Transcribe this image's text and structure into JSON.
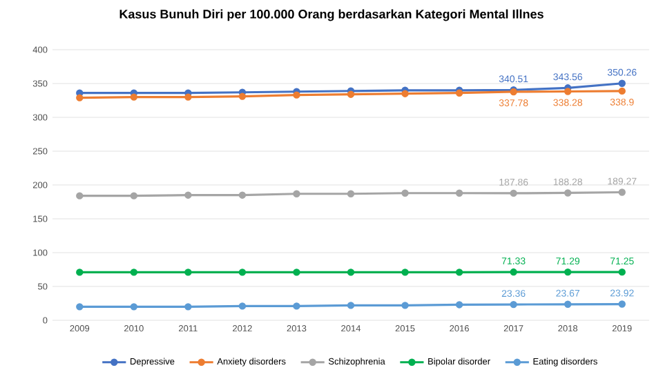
{
  "chart_data": {
    "type": "line",
    "title": "Kasus Bunuh Diri per 100.000 Orang berdasarkan Kategori Mental Illnes",
    "categories": [
      "2009",
      "2010",
      "2011",
      "2012",
      "2013",
      "2014",
      "2015",
      "2016",
      "2017",
      "2018",
      "2019"
    ],
    "ylim": [
      0,
      400
    ],
    "yticks": [
      0,
      50,
      100,
      150,
      200,
      250,
      300,
      350,
      400
    ],
    "grid": "y",
    "legend": "bottom",
    "marker": "circle",
    "line_style": "solid",
    "series": [
      {
        "name": "Depressive",
        "color": "#4472c4",
        "values": [
          336,
          336,
          336,
          337,
          338,
          339,
          340,
          340,
          340.51,
          343.56,
          350.26
        ],
        "value_labels": [
          null,
          null,
          null,
          null,
          null,
          null,
          null,
          null,
          "340.51",
          "343.56",
          "350.26"
        ]
      },
      {
        "name": "Anxiety disorders",
        "color": "#ed7d31",
        "values": [
          329,
          330,
          330,
          331,
          333,
          334,
          335,
          336,
          337.78,
          338.28,
          338.9
        ],
        "value_labels": [
          null,
          null,
          null,
          null,
          null,
          null,
          null,
          null,
          "337.78",
          "338.28",
          "338.9"
        ]
      },
      {
        "name": "Schizophrenia",
        "color": "#a5a5a5",
        "values": [
          184,
          184,
          185,
          185,
          187,
          187,
          188,
          188,
          187.86,
          188.28,
          189.27
        ],
        "value_labels": [
          null,
          null,
          null,
          null,
          null,
          null,
          null,
          null,
          "187.86",
          "188.28",
          "189.27"
        ]
      },
      {
        "name": "Bipolar disorder",
        "color": "#00b050",
        "values": [
          71,
          71,
          71,
          71,
          71,
          71,
          71,
          71,
          71.33,
          71.29,
          71.25
        ],
        "value_labels": [
          null,
          null,
          null,
          null,
          null,
          null,
          null,
          null,
          "71.33",
          "71.29",
          "71.25"
        ]
      },
      {
        "name": "Eating disorders",
        "color": "#5b9bd5",
        "values": [
          20,
          20,
          20,
          21,
          21,
          22,
          22,
          23,
          23.36,
          23.67,
          23.92
        ],
        "value_labels": [
          null,
          null,
          null,
          null,
          null,
          null,
          null,
          null,
          "23.36",
          "23.67",
          "23.92"
        ]
      }
    ]
  }
}
